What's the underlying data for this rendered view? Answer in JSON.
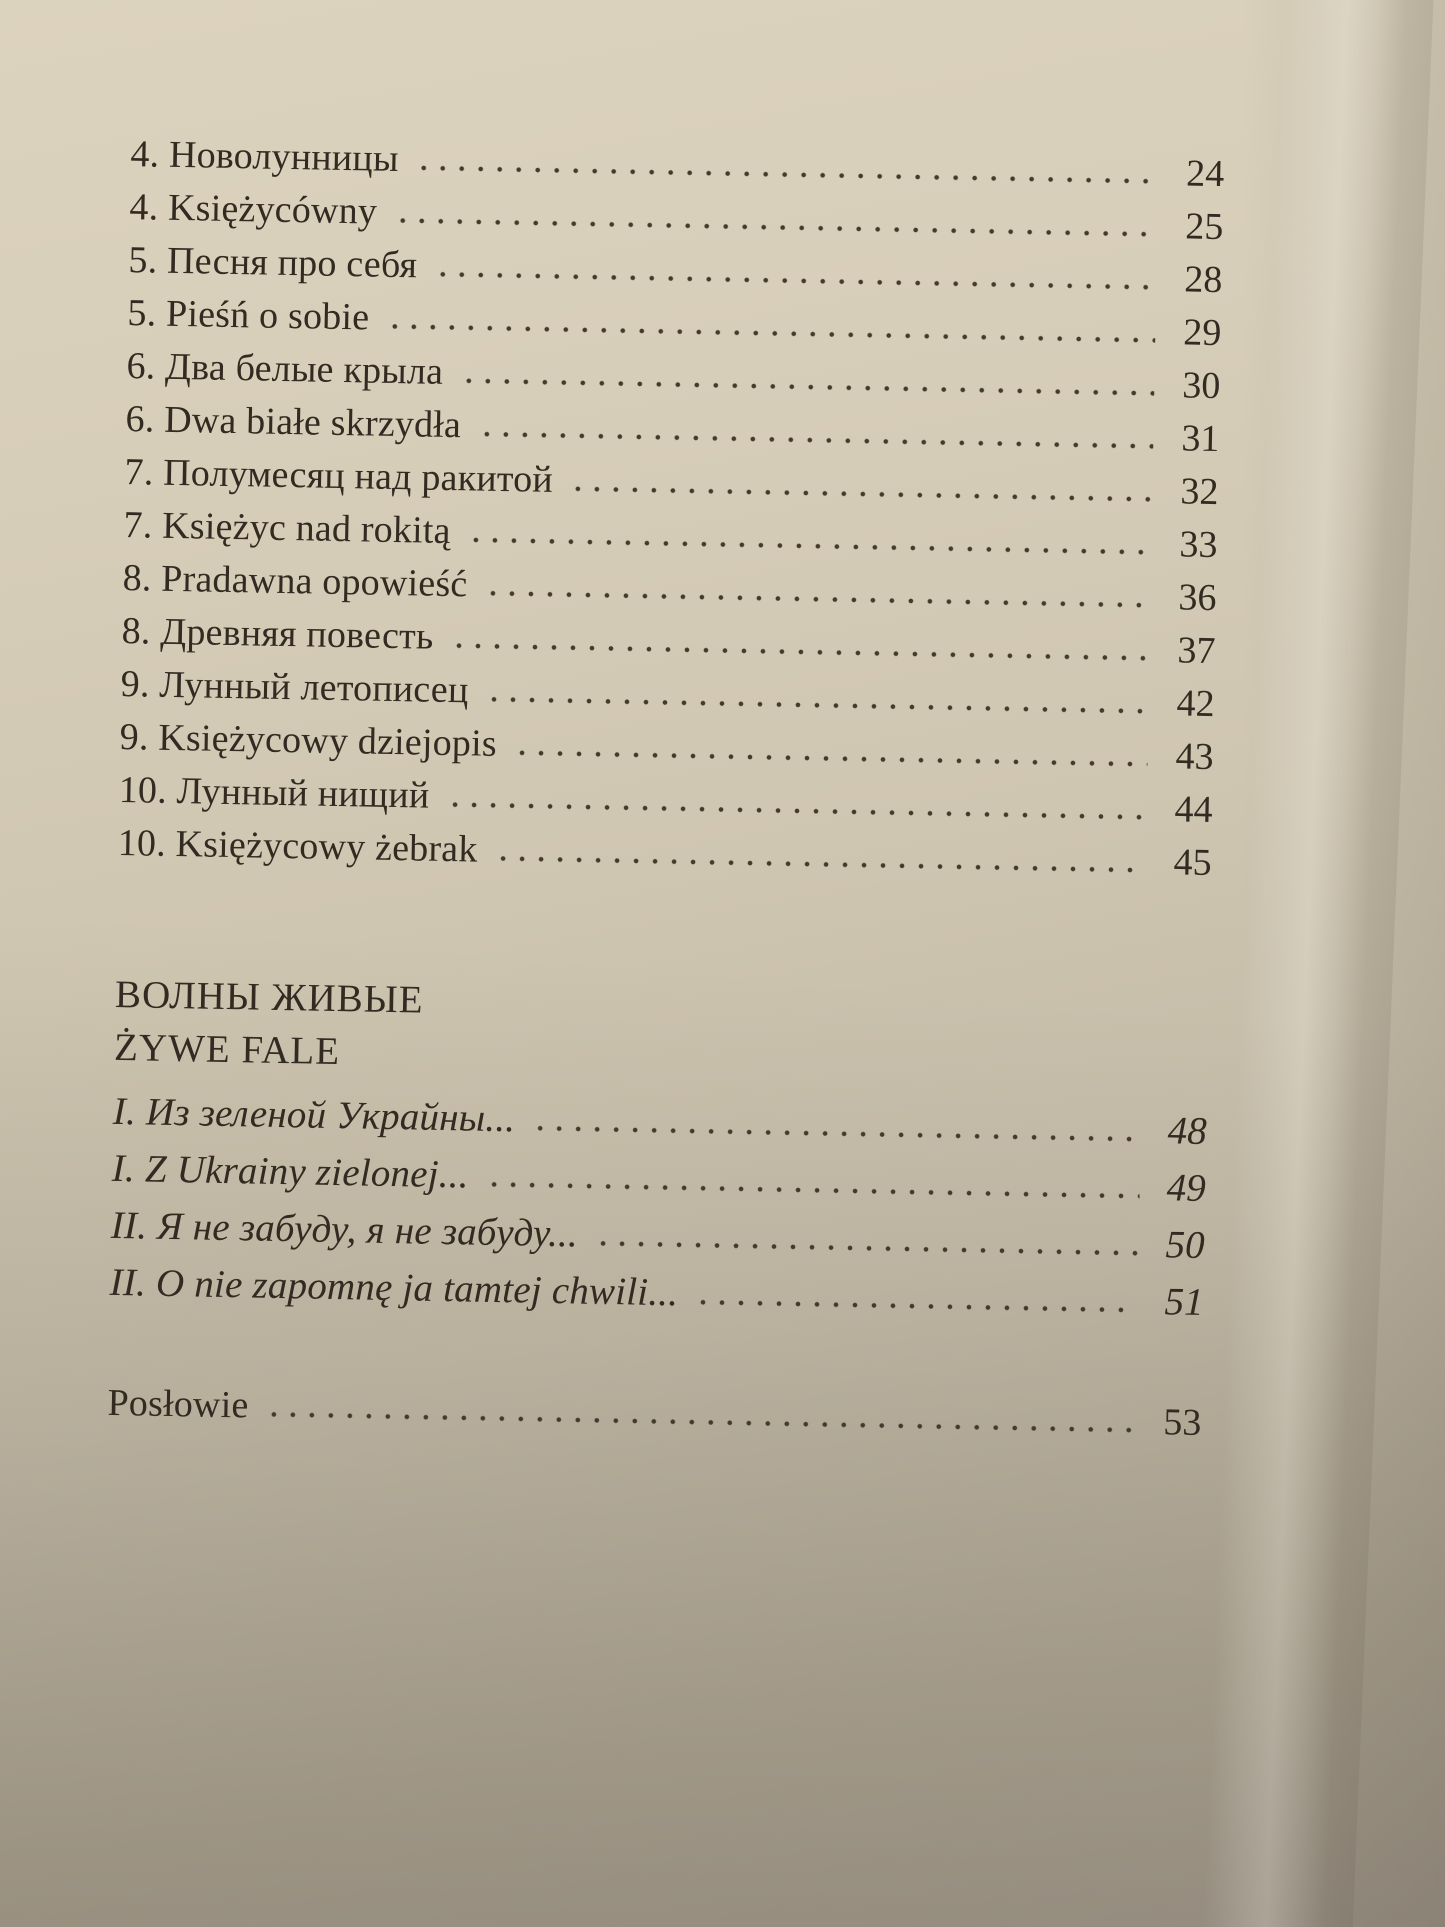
{
  "colors": {
    "paper_light": "#dcd3be",
    "paper_dark": "#a59c8f",
    "ink": "#332a22"
  },
  "toc": {
    "main_entries": [
      {
        "label": "4. Новолунницы",
        "page": "24"
      },
      {
        "label": "4. Księżycówny",
        "page": "25"
      },
      {
        "label": "5. Песня про себя",
        "page": "28"
      },
      {
        "label": "5. Pieśń o sobie",
        "page": "29"
      },
      {
        "label": "6. Два белые крыла",
        "page": "30"
      },
      {
        "label": "6. Dwa białe skrzydła",
        "page": "31"
      },
      {
        "label": "7. Полумесяц над ракитой",
        "page": "32"
      },
      {
        "label": "7. Księżyc nad rokitą",
        "page": "33"
      },
      {
        "label": "8. Pradawna opowieść",
        "page": "36"
      },
      {
        "label": "8. Древняя повесть",
        "page": "37"
      },
      {
        "label": "9. Лунный летописец",
        "page": "42"
      },
      {
        "label": "9. Księżycowy dziejopis",
        "page": "43"
      },
      {
        "label": "10. Лунный нищий",
        "page": "44"
      },
      {
        "label": "10. Księżycowy żebrak",
        "page": "45"
      }
    ],
    "section": {
      "title_ru": "ВОЛНЫ ЖИВЫЕ",
      "title_pl": "ŻYWE FALE"
    },
    "section_entries": [
      {
        "label": "I. Из зеленой Украйны...",
        "page": "48"
      },
      {
        "label": "I. Z Ukrainy zielonej...",
        "page": "49"
      },
      {
        "label": "II. Я не забуду, я не забуду...",
        "page": "50"
      },
      {
        "label": "II. O nie zapomnę ja tamtej chwili...",
        "page": "51"
      }
    ],
    "footer_entries": [
      {
        "label": "Posłowie",
        "page": "53"
      }
    ]
  }
}
